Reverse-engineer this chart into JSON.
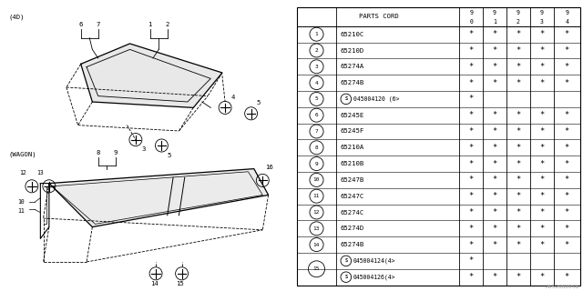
{
  "bg_color": "#ffffff",
  "line_color": "#000000",
  "text_color": "#000000",
  "watermark": "A652000046",
  "fs_small": 5.5,
  "fs_label": 5.0,
  "table_rows": [
    {
      "num": "1",
      "part": "65210C",
      "marks": [
        1,
        1,
        1,
        1,
        1
      ],
      "special": false
    },
    {
      "num": "2",
      "part": "65210D",
      "marks": [
        1,
        1,
        1,
        1,
        1
      ],
      "special": false
    },
    {
      "num": "3",
      "part": "65274A",
      "marks": [
        1,
        1,
        1,
        1,
        1
      ],
      "special": false
    },
    {
      "num": "4",
      "part": "65274B",
      "marks": [
        1,
        1,
        1,
        1,
        1
      ],
      "special": false
    },
    {
      "num": "5",
      "part": "045004120 (6>",
      "marks": [
        1,
        0,
        0,
        0,
        0
      ],
      "special": true
    },
    {
      "num": "6",
      "part": "65245E",
      "marks": [
        1,
        1,
        1,
        1,
        1
      ],
      "special": false
    },
    {
      "num": "7",
      "part": "65245F",
      "marks": [
        1,
        1,
        1,
        1,
        1
      ],
      "special": false
    },
    {
      "num": "8",
      "part": "65210A",
      "marks": [
        1,
        1,
        1,
        1,
        1
      ],
      "special": false
    },
    {
      "num": "9",
      "part": "65210B",
      "marks": [
        1,
        1,
        1,
        1,
        1
      ],
      "special": false
    },
    {
      "num": "10",
      "part": "65247B",
      "marks": [
        1,
        1,
        1,
        1,
        1
      ],
      "special": false
    },
    {
      "num": "11",
      "part": "65247C",
      "marks": [
        1,
        1,
        1,
        1,
        1
      ],
      "special": false
    },
    {
      "num": "12",
      "part": "65274C",
      "marks": [
        1,
        1,
        1,
        1,
        1
      ],
      "special": false
    },
    {
      "num": "13",
      "part": "65274D",
      "marks": [
        1,
        1,
        1,
        1,
        1
      ],
      "special": false
    },
    {
      "num": "14",
      "part": "65274B",
      "marks": [
        1,
        1,
        1,
        1,
        1
      ],
      "special": false
    },
    {
      "num": "15",
      "part": "045004124(4>",
      "marks": [
        1,
        0,
        0,
        0,
        0
      ],
      "special": true,
      "extra_part": "045004126(4>",
      "extra_marks": [
        1,
        1,
        1,
        1,
        1
      ]
    }
  ]
}
